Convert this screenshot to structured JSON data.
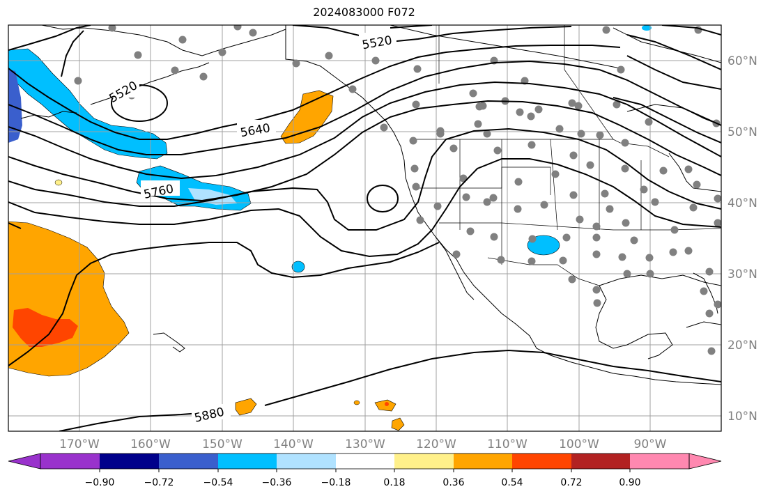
{
  "title": "2024083000 F072",
  "map": {
    "lon_labels": [
      "170°W",
      "160°W",
      "150°W",
      "140°W",
      "130°W",
      "120°W",
      "110°W",
      "100°W",
      "90°W"
    ],
    "lat_labels": [
      "60°N",
      "50°N",
      "40°N",
      "30°N",
      "20°N",
      "10°N"
    ],
    "contour_labels": [
      "5520",
      "5520",
      "5640",
      "5760",
      "5880"
    ],
    "grid": true
  },
  "colorbar": {
    "ticks": [
      "−0.90",
      "−0.72",
      "−0.54",
      "−0.36",
      "−0.18",
      "0.18",
      "0.36",
      "0.54",
      "0.72",
      "0.90"
    ],
    "colors": [
      "#9932cc",
      "#00008b",
      "#3a5fcd",
      "#00bfff",
      "#b0e2ff",
      "#ffffff",
      "#fff08a",
      "#ffa500",
      "#ff4500",
      "#b22222",
      "#ff88b0"
    ]
  }
}
